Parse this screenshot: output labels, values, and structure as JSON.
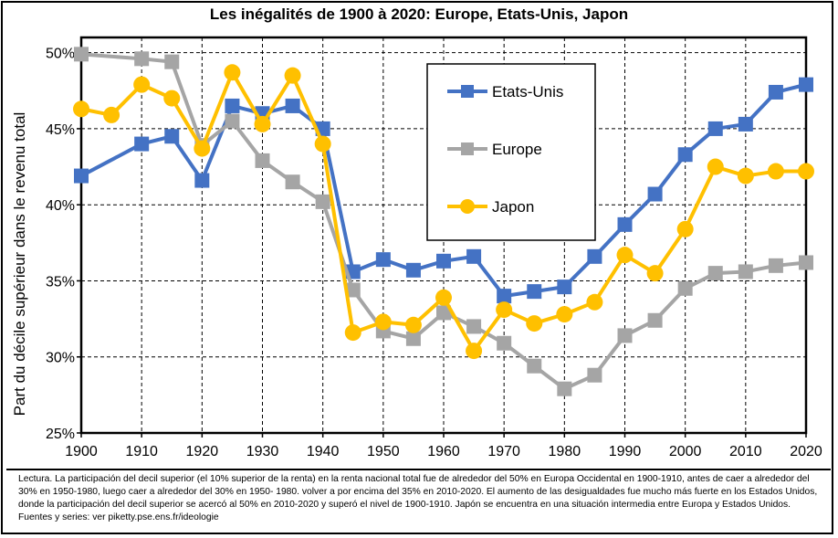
{
  "chart_data": {
    "type": "line",
    "title": "Les inégalités de 1900 à 2020: Europe, Etats-Unis, Japon",
    "ylabel": "Part du décile supérieur dans le revenu total",
    "xlabel": "",
    "x": [
      1900,
      1905,
      1910,
      1915,
      1920,
      1925,
      1930,
      1935,
      1940,
      1945,
      1950,
      1955,
      1960,
      1965,
      1970,
      1975,
      1980,
      1985,
      1990,
      1995,
      2000,
      2005,
      2010,
      2015,
      2020
    ],
    "xlim": [
      1900,
      2020
    ],
    "ylim": [
      25,
      51
    ],
    "x_ticks": [
      "1900",
      "1910",
      "1920",
      "1930",
      "1940",
      "1950",
      "1960",
      "1970",
      "1980",
      "1990",
      "2000",
      "2010",
      "2020"
    ],
    "y_ticks": [
      "25%",
      "30%",
      "35%",
      "40%",
      "45%",
      "50%"
    ],
    "grid": true,
    "legend_position": "top-center",
    "series": [
      {
        "name": "Etats-Unis",
        "color": "#4472C4",
        "marker": "square",
        "values": [
          41.9,
          null,
          44.0,
          44.5,
          41.6,
          46.5,
          46.0,
          46.5,
          45.0,
          35.6,
          36.4,
          35.7,
          36.3,
          36.6,
          34.0,
          34.3,
          34.6,
          36.6,
          38.7,
          40.7,
          43.3,
          45.0,
          45.3,
          47.4,
          47.9
        ]
      },
      {
        "name": "Europe",
        "color": "#A5A5A5",
        "marker": "square",
        "values": [
          49.9,
          null,
          49.6,
          49.4,
          43.9,
          45.5,
          42.9,
          41.5,
          40.2,
          34.4,
          31.7,
          31.2,
          32.9,
          32.0,
          30.9,
          29.4,
          27.9,
          28.8,
          31.4,
          32.4,
          34.5,
          35.5,
          35.6,
          36.0,
          36.2
        ]
      },
      {
        "name": "Japon",
        "color": "#FFC000",
        "marker": "circle",
        "values": [
          46.3,
          45.9,
          47.9,
          47.0,
          43.7,
          48.7,
          45.3,
          48.5,
          44.0,
          31.6,
          32.3,
          32.1,
          33.9,
          30.4,
          33.1,
          32.2,
          32.8,
          33.6,
          36.7,
          35.5,
          38.4,
          42.5,
          41.9,
          42.2,
          42.2
        ]
      }
    ]
  },
  "note": {
    "lines": [
      "Lectura. La participación del decil superior (el 10% superior de la renta) en la renta nacional total  fue de alrededor del 50% en Europa Occidental en 1900-1910, antes de caer a alrededor del",
      "30% en 1950-1980, luego caer a alrededor del 30% en 1950- 1980. volver a por encima del 35% en 2010-2020. El aumento de las desigualdades fue mucho más fuerte en los Estados Unidos,",
      "donde la participación del decil superior se acercó al 50% en 2010-2020 y superó el nivel de 1900-1910. Japón se encuentra en una situación intermedia entre Europa y Estados Unidos.",
      "Fuentes y series: ver piketty.pse.ens.fr/ideologie"
    ]
  }
}
